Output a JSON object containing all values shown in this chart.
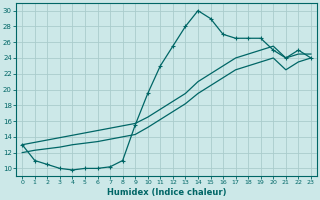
{
  "xlabel": "Humidex (Indice chaleur)",
  "bg_color": "#cce8e8",
  "grid_color": "#aacccc",
  "line_color": "#006666",
  "xlim": [
    -0.5,
    23.5
  ],
  "ylim": [
    9,
    31
  ],
  "yticks": [
    10,
    12,
    14,
    16,
    18,
    20,
    22,
    24,
    26,
    28,
    30
  ],
  "xticks": [
    0,
    1,
    2,
    3,
    4,
    5,
    6,
    7,
    8,
    9,
    10,
    11,
    12,
    13,
    14,
    15,
    16,
    17,
    18,
    19,
    20,
    21,
    22,
    23
  ],
  "line1_x": [
    0,
    1,
    2,
    3,
    4,
    5,
    6,
    7,
    8,
    9,
    10,
    11,
    12,
    13,
    14,
    15,
    16,
    17,
    18,
    19,
    20,
    21,
    22,
    23
  ],
  "line1_y": [
    13,
    11,
    10.5,
    10,
    9.8,
    10,
    10,
    10.2,
    11,
    15.5,
    19.5,
    23,
    25.5,
    28,
    30,
    29,
    27,
    26.5,
    26.5,
    26.5,
    25,
    24,
    25,
    24
  ],
  "line2_x": [
    0,
    1,
    2,
    3,
    4,
    5,
    6,
    7,
    8,
    9,
    10,
    11,
    12,
    13,
    14,
    15,
    16,
    17,
    18,
    19,
    20,
    21,
    22,
    23
  ],
  "line2_y": [
    13,
    13.3,
    13.6,
    13.9,
    14.2,
    14.5,
    14.8,
    15.1,
    15.4,
    15.7,
    16.5,
    17.5,
    18.5,
    19.5,
    21,
    22,
    23,
    24,
    24.5,
    25,
    25.5,
    24,
    24.5,
    24.5
  ],
  "line3_x": [
    0,
    1,
    2,
    3,
    4,
    5,
    6,
    7,
    8,
    9,
    10,
    11,
    12,
    13,
    14,
    15,
    16,
    17,
    18,
    19,
    20,
    21,
    22,
    23
  ],
  "line3_y": [
    12,
    12.3,
    12.5,
    12.7,
    13,
    13.2,
    13.4,
    13.7,
    14,
    14.3,
    15.2,
    16.2,
    17.2,
    18.2,
    19.5,
    20.5,
    21.5,
    22.5,
    23,
    23.5,
    24,
    22.5,
    23.5,
    24
  ]
}
